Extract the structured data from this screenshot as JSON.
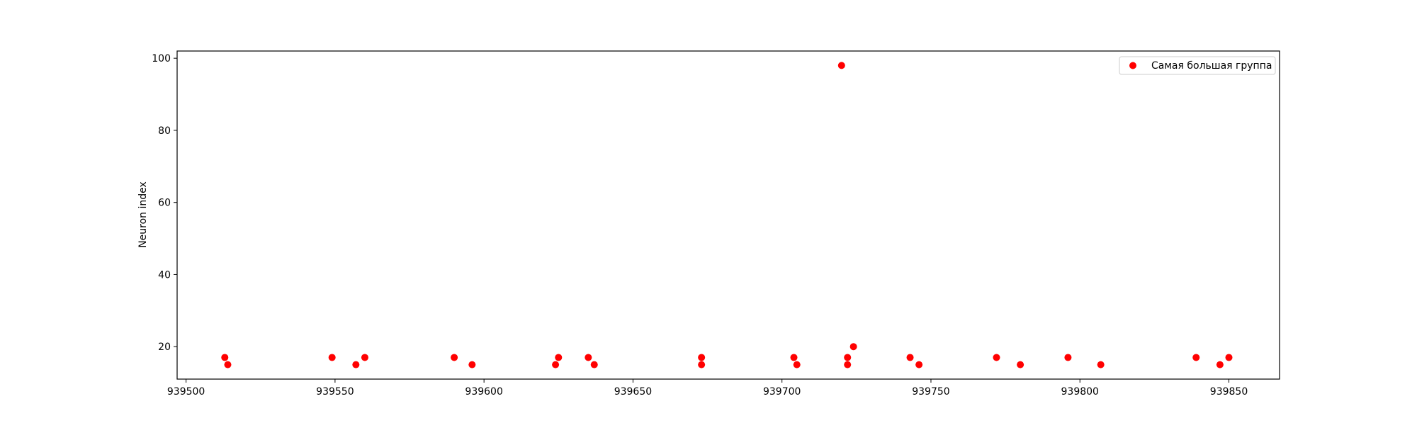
{
  "chart_data": {
    "type": "scatter",
    "title": "",
    "xlabel": "",
    "ylabel": "Neuron index",
    "xlim": [
      939497,
      939867
    ],
    "ylim": [
      11,
      102
    ],
    "xticks": [
      939500,
      939550,
      939600,
      939650,
      939700,
      939750,
      939800,
      939850
    ],
    "xtick_labels": [
      "939500",
      "939550",
      "939600",
      "939650",
      "939700",
      "939750",
      "939800",
      "939850"
    ],
    "yticks": [
      20,
      40,
      60,
      80,
      100
    ],
    "ytick_labels": [
      "20",
      "40",
      "60",
      "80",
      "100"
    ],
    "grid": false,
    "legend_position": "top-right",
    "series": [
      {
        "name": "Самая большая группа",
        "color": "#ff0000",
        "points": [
          [
            939513,
            17
          ],
          [
            939514,
            15
          ],
          [
            939549,
            17
          ],
          [
            939557,
            15
          ],
          [
            939560,
            17
          ],
          [
            939590,
            17
          ],
          [
            939596,
            15
          ],
          [
            939624,
            15
          ],
          [
            939625,
            17
          ],
          [
            939635,
            17
          ],
          [
            939637,
            15
          ],
          [
            939673,
            17
          ],
          [
            939673,
            15
          ],
          [
            939704,
            17
          ],
          [
            939705,
            15
          ],
          [
            939720,
            98
          ],
          [
            939722,
            17
          ],
          [
            939722,
            15
          ],
          [
            939724,
            20
          ],
          [
            939743,
            17
          ],
          [
            939746,
            15
          ],
          [
            939772,
            17
          ],
          [
            939780,
            15
          ],
          [
            939796,
            17
          ],
          [
            939807,
            15
          ],
          [
            939839,
            17
          ],
          [
            939847,
            15
          ],
          [
            939850,
            17
          ]
        ]
      }
    ]
  }
}
